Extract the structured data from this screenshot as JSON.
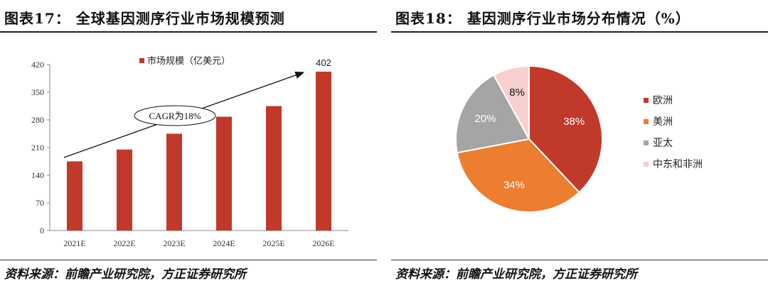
{
  "left_panel": {
    "title": "图表17： 全球基因测序行业市场规模预测",
    "source": "资料来源：前瞻产业研究院，方正证券研究所"
  },
  "right_panel": {
    "title": "图表18： 基因测序行业市场分布情况（%）",
    "source": "资料来源：前瞻产业研究院，方正证券研究所"
  },
  "chart_data": [
    {
      "type": "bar",
      "title": "全球基因测序行业市场规模预测",
      "categories": [
        "2021E",
        "2022E",
        "2023E",
        "2024E",
        "2025E",
        "2026E"
      ],
      "series": [
        {
          "name": "市场规模（亿美元）",
          "values": [
            175,
            205,
            245,
            288,
            315,
            402
          ]
        }
      ],
      "ylim": [
        0,
        420
      ],
      "yticks": [
        0,
        70,
        140,
        210,
        280,
        350,
        420
      ],
      "data_labels": [
        {
          "category": "2026E",
          "text": "402"
        }
      ],
      "annotation": "CAGR为18%",
      "legend": "top",
      "color": "#c0392b"
    },
    {
      "type": "pie",
      "title": "基因测序行业市场分布情况（%）",
      "labels": [
        "欧洲",
        "美洲",
        "亚太",
        "中东和非洲"
      ],
      "values": [
        38,
        34,
        20,
        8
      ],
      "value_labels": [
        "38%",
        "34%",
        "20%",
        "8%"
      ],
      "colors": [
        "#c0392b",
        "#ed7d31",
        "#a5a5a5",
        "#f8d0d0"
      ],
      "legend": "right"
    }
  ]
}
